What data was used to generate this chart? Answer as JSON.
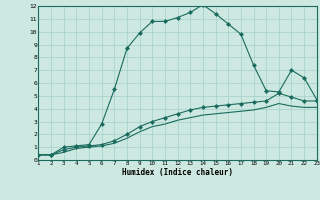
{
  "xlabel": "Humidex (Indice chaleur)",
  "xlim": [
    1,
    23
  ],
  "ylim": [
    0,
    12
  ],
  "xticks": [
    1,
    2,
    3,
    4,
    5,
    6,
    7,
    8,
    9,
    10,
    11,
    12,
    13,
    14,
    15,
    16,
    17,
    18,
    19,
    20,
    21,
    22,
    23
  ],
  "yticks": [
    0,
    1,
    2,
    3,
    4,
    5,
    6,
    7,
    8,
    9,
    10,
    11,
    12
  ],
  "bg_color": "#cce8e0",
  "line_color": "#1a6b5e",
  "grid_color": "#aad4cc",
  "series1_x": [
    1,
    2,
    3,
    4,
    5,
    6,
    7,
    8,
    9,
    10,
    11,
    12,
    13,
    14,
    15,
    16,
    17,
    18,
    19,
    20,
    21,
    22,
    23
  ],
  "series1_y": [
    0.4,
    0.4,
    1.0,
    1.1,
    1.2,
    2.8,
    5.5,
    8.7,
    9.9,
    10.8,
    10.8,
    11.1,
    11.5,
    12.1,
    11.4,
    10.6,
    9.8,
    7.4,
    5.4,
    5.3,
    7.0,
    6.4,
    4.7
  ],
  "series2_x": [
    1,
    2,
    3,
    4,
    5,
    6,
    7,
    8,
    9,
    10,
    11,
    12,
    13,
    14,
    15,
    16,
    17,
    18,
    19,
    20,
    21,
    22,
    23
  ],
  "series2_y": [
    0.4,
    0.4,
    0.8,
    1.0,
    1.1,
    1.2,
    1.5,
    2.0,
    2.6,
    3.0,
    3.3,
    3.6,
    3.9,
    4.1,
    4.2,
    4.3,
    4.4,
    4.5,
    4.6,
    5.2,
    4.9,
    4.6,
    4.6
  ],
  "series3_x": [
    1,
    2,
    3,
    4,
    5,
    6,
    7,
    8,
    9,
    10,
    11,
    12,
    13,
    14,
    15,
    16,
    17,
    18,
    19,
    20,
    21,
    22,
    23
  ],
  "series3_y": [
    0.4,
    0.4,
    0.6,
    0.9,
    1.0,
    1.1,
    1.3,
    1.7,
    2.2,
    2.6,
    2.8,
    3.1,
    3.3,
    3.5,
    3.6,
    3.7,
    3.8,
    3.9,
    4.1,
    4.4,
    4.2,
    4.1,
    4.1
  ]
}
